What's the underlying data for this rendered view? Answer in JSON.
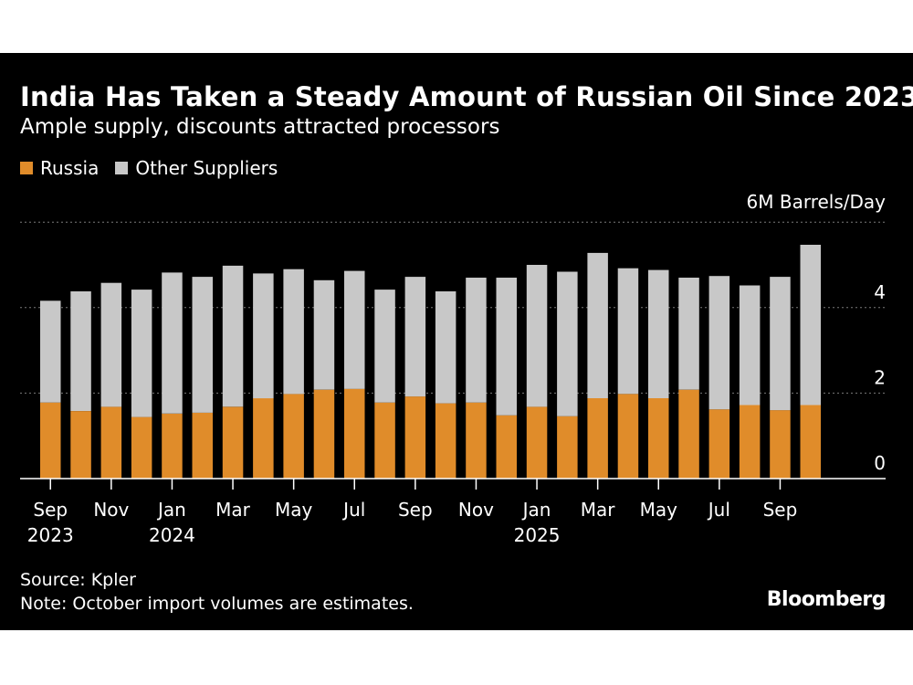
{
  "title": "India Has Taken a Steady Amount of Russian Oil Since 2023",
  "subtitle": "Ample supply, discounts attracted processors",
  "legend": [
    {
      "label": "Russia",
      "color": "#e08c2a"
    },
    {
      "label": "Other Suppliers",
      "color": "#c8c8c8"
    }
  ],
  "footer": {
    "source": "Source: Kpler",
    "note": "Note: October import volumes are estimates."
  },
  "brand": "Bloomberg",
  "chart_data": {
    "type": "bar",
    "stacked": true,
    "unit_label": "6M Barrels/Day",
    "ylim": [
      0,
      6
    ],
    "yticks": [
      0,
      2,
      4,
      6
    ],
    "grid": true,
    "legend_position": "top-left",
    "categories": [
      "Sep 2023",
      "Oct 2023",
      "Nov 2023",
      "Dec 2023",
      "Jan 2024",
      "Feb 2024",
      "Mar 2024",
      "Apr 2024",
      "May 2024",
      "Jun 2024",
      "Jul 2024",
      "Aug 2024",
      "Sep 2024",
      "Oct 2024",
      "Nov 2024",
      "Dec 2024",
      "Jan 2025",
      "Feb 2025",
      "Mar 2025",
      "Apr 2025",
      "May 2025",
      "Jun 2025",
      "Jul 2025",
      "Aug 2025",
      "Sep 2025",
      "Oct 2025"
    ],
    "x_tick_labels": [
      {
        "index": 0,
        "month": "Sep",
        "year": "2023"
      },
      {
        "index": 2,
        "month": "Nov",
        "year": ""
      },
      {
        "index": 4,
        "month": "Jan",
        "year": "2024"
      },
      {
        "index": 6,
        "month": "Mar",
        "year": ""
      },
      {
        "index": 8,
        "month": "May",
        "year": ""
      },
      {
        "index": 10,
        "month": "Jul",
        "year": ""
      },
      {
        "index": 12,
        "month": "Sep",
        "year": ""
      },
      {
        "index": 14,
        "month": "Nov",
        "year": ""
      },
      {
        "index": 16,
        "month": "Jan",
        "year": "2025"
      },
      {
        "index": 18,
        "month": "Mar",
        "year": ""
      },
      {
        "index": 20,
        "month": "May",
        "year": ""
      },
      {
        "index": 22,
        "month": "Jul",
        "year": ""
      },
      {
        "index": 24,
        "month": "Sep",
        "year": ""
      }
    ],
    "series": [
      {
        "name": "Russia",
        "color": "#e08c2a",
        "values": [
          1.78,
          1.58,
          1.68,
          1.44,
          1.52,
          1.54,
          1.68,
          1.88,
          1.98,
          2.08,
          2.1,
          1.78,
          1.92,
          1.76,
          1.78,
          1.48,
          1.68,
          1.46,
          1.88,
          1.98,
          1.88,
          2.08,
          1.62,
          1.72,
          1.6,
          1.72
        ]
      },
      {
        "name": "Other Suppliers",
        "color": "#c8c8c8",
        "values": [
          2.38,
          2.8,
          2.9,
          2.98,
          3.3,
          3.18,
          3.3,
          2.92,
          2.92,
          2.56,
          2.76,
          2.64,
          2.8,
          2.62,
          2.92,
          3.22,
          3.32,
          3.38,
          3.4,
          2.94,
          3.0,
          2.62,
          3.12,
          2.8,
          3.12,
          3.75
        ]
      }
    ]
  }
}
